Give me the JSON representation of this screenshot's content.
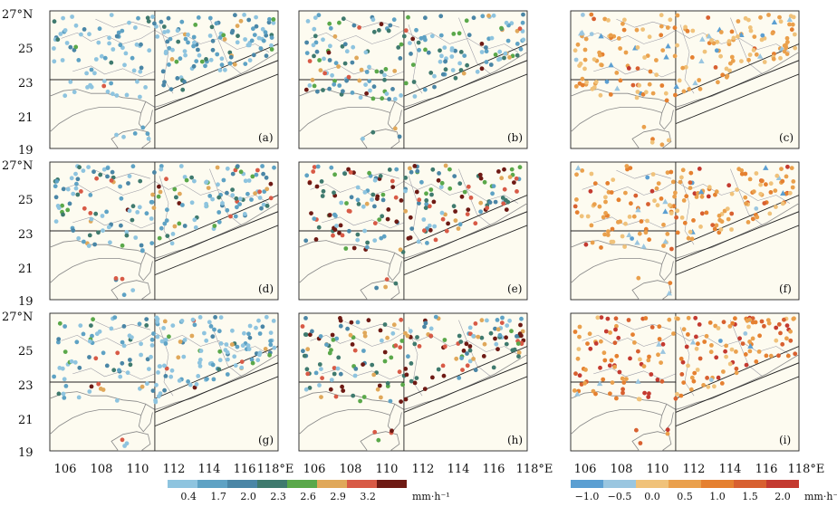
{
  "figure": {
    "lat_ticks": [
      "27°N",
      "25",
      "23",
      "21",
      "19"
    ],
    "lon_ticks_left": [
      "106",
      "108",
      "110",
      "112",
      "114",
      "116",
      "118°E"
    ],
    "lon_ticks_right": [
      "106",
      "108",
      "110",
      "112",
      "114",
      "116",
      "118°E"
    ],
    "panel_labels": [
      "(a)",
      "(b)",
      "(c)",
      "(d)",
      "(e)",
      "(f)",
      "(g)",
      "(h)",
      "(i)"
    ]
  },
  "colorbar_left": {
    "colors": [
      "#8ec4df",
      "#5ea2c4",
      "#4a86a6",
      "#3f7a6e",
      "#5aa84a",
      "#e0a85a",
      "#d85a46",
      "#6e1a14"
    ],
    "labels": [
      "0.4",
      "1.7",
      "2.0",
      "2.3",
      "2.6",
      "2.9",
      "3.2"
    ],
    "unit": "mm·h⁻¹"
  },
  "colorbar_right": {
    "colors": [
      "#5b9fd2",
      "#9ac6e0",
      "#f0c27a",
      "#eaa04c",
      "#e58030",
      "#d86030",
      "#c43a30"
    ],
    "labels": [
      "−1.0",
      "−0.5",
      "0.0",
      "0.5",
      "1.0",
      "1.5",
      "2.0"
    ],
    "unit": "mm·h⁻¹"
  },
  "chart_data": {
    "type": "scatter",
    "description_panels": 9,
    "lon_range": [
      105,
      118
    ],
    "lat_range": [
      19,
      27
    ],
    "panels": [
      {
        "id": "a",
        "level_mix": [
          0.45,
          0.25,
          0.15,
          0.08,
          0.04,
          0.02,
          0.01,
          0.0
        ],
        "kind": "rain"
      },
      {
        "id": "b",
        "level_mix": [
          0.25,
          0.15,
          0.2,
          0.15,
          0.12,
          0.06,
          0.04,
          0.03
        ],
        "kind": "rain"
      },
      {
        "id": "c",
        "level_mix": [
          0.05,
          0.08,
          0.35,
          0.35,
          0.12,
          0.04,
          0.01
        ],
        "kind": "diff"
      },
      {
        "id": "d",
        "level_mix": [
          0.3,
          0.2,
          0.15,
          0.12,
          0.1,
          0.06,
          0.04,
          0.03
        ],
        "kind": "rain"
      },
      {
        "id": "e",
        "level_mix": [
          0.08,
          0.1,
          0.12,
          0.15,
          0.12,
          0.1,
          0.13,
          0.2
        ],
        "kind": "rain"
      },
      {
        "id": "f",
        "level_mix": [
          0.04,
          0.06,
          0.2,
          0.35,
          0.2,
          0.1,
          0.05
        ],
        "kind": "diff"
      },
      {
        "id": "g",
        "level_mix": [
          0.5,
          0.2,
          0.1,
          0.06,
          0.05,
          0.04,
          0.03,
          0.02
        ],
        "kind": "rain"
      },
      {
        "id": "h",
        "level_mix": [
          0.1,
          0.1,
          0.1,
          0.12,
          0.12,
          0.14,
          0.14,
          0.18
        ],
        "kind": "rain"
      },
      {
        "id": "i",
        "level_mix": [
          0.03,
          0.05,
          0.12,
          0.3,
          0.2,
          0.15,
          0.15
        ],
        "kind": "diff"
      }
    ]
  }
}
